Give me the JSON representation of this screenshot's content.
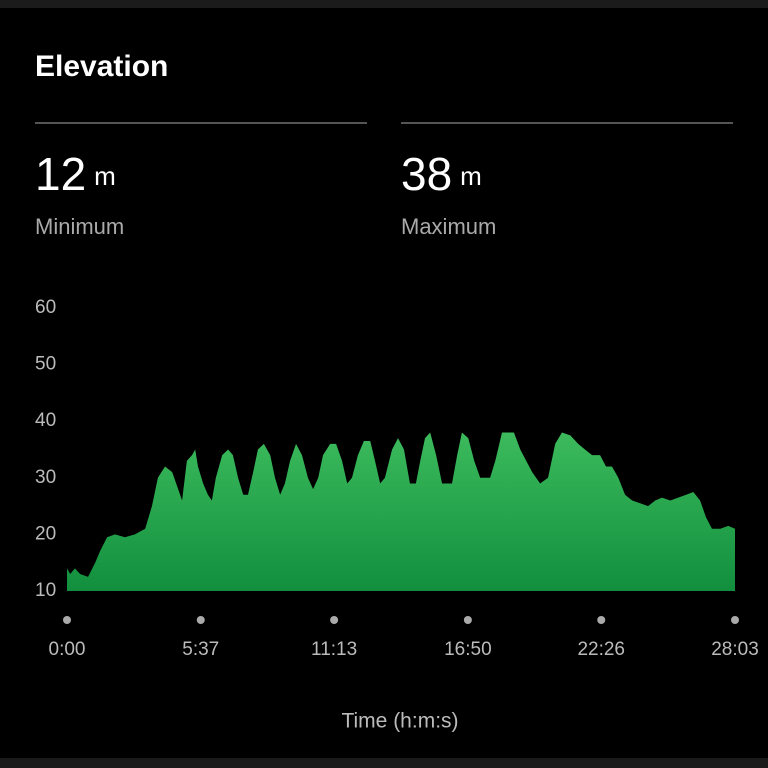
{
  "header": {
    "title": "Elevation"
  },
  "stats": [
    {
      "value": 12,
      "unit": "m",
      "label": "Minimum"
    },
    {
      "value": 38,
      "unit": "m",
      "label": "Maximum"
    }
  ],
  "chart_data": {
    "type": "area",
    "color_top": "#3cba5c",
    "color_bottom": "#128f3e",
    "xlabel": "Time (h:m:s)",
    "xlim": [
      0,
      1683
    ],
    "ylim": [
      10,
      60
    ],
    "yticks": [
      10,
      20,
      30,
      40,
      50,
      60
    ],
    "xticks": [
      {
        "value": 0,
        "label": "0:00"
      },
      {
        "value": 337,
        "label": "5:37"
      },
      {
        "value": 673,
        "label": "11:13"
      },
      {
        "value": 1010,
        "label": "16:50"
      },
      {
        "value": 1346,
        "label": "22:26"
      },
      {
        "value": 1683,
        "label": "28:03"
      }
    ],
    "x": [
      0,
      8,
      20,
      33,
      53,
      71,
      83,
      101,
      121,
      146,
      171,
      197,
      214,
      229,
      247,
      265,
      280,
      290,
      302,
      315,
      323,
      330,
      343,
      355,
      365,
      375,
      391,
      406,
      418,
      431,
      444,
      456,
      469,
      481,
      496,
      512,
      524,
      537,
      549,
      562,
      577,
      592,
      607,
      620,
      633,
      645,
      663,
      678,
      693,
      706,
      718,
      733,
      748,
      764,
      776,
      789,
      801,
      819,
      834,
      849,
      864,
      879,
      890,
      902,
      915,
      930,
      945,
      958,
      970,
      983,
      995,
      1011,
      1026,
      1041,
      1056,
      1066,
      1079,
      1096,
      1111,
      1126,
      1142,
      1157,
      1172,
      1192,
      1212,
      1230,
      1247,
      1268,
      1288,
      1305,
      1323,
      1343,
      1358,
      1373,
      1389,
      1406,
      1424,
      1444,
      1464,
      1482,
      1499,
      1520,
      1540,
      1560,
      1578,
      1595,
      1610,
      1625,
      1646,
      1666,
      1683
    ],
    "values": [
      14,
      13,
      14,
      13,
      12.5,
      15,
      17,
      19.5,
      20,
      19.5,
      20,
      21,
      25,
      30,
      32,
      31,
      28,
      26,
      33,
      34,
      35,
      32,
      29,
      27,
      26,
      30,
      34,
      35,
      34,
      30,
      27,
      27,
      31,
      35,
      36,
      34,
      30,
      27,
      29,
      33,
      36,
      34,
      30,
      28,
      30,
      34,
      36,
      36,
      33,
      29,
      30,
      34,
      36.5,
      36.5,
      33,
      29,
      30,
      35,
      37,
      35,
      29,
      29,
      33,
      37,
      38,
      34,
      29,
      29,
      29,
      34,
      38,
      37,
      33,
      30,
      30,
      30,
      33,
      38,
      38,
      38,
      35,
      33,
      31,
      29,
      30,
      36,
      38,
      37.5,
      36,
      35,
      34,
      34,
      32,
      32,
      30,
      27,
      26,
      25.5,
      25,
      26,
      26.5,
      26,
      26.5,
      27,
      27.5,
      26,
      23,
      21,
      21,
      21.5,
      21
    ]
  }
}
